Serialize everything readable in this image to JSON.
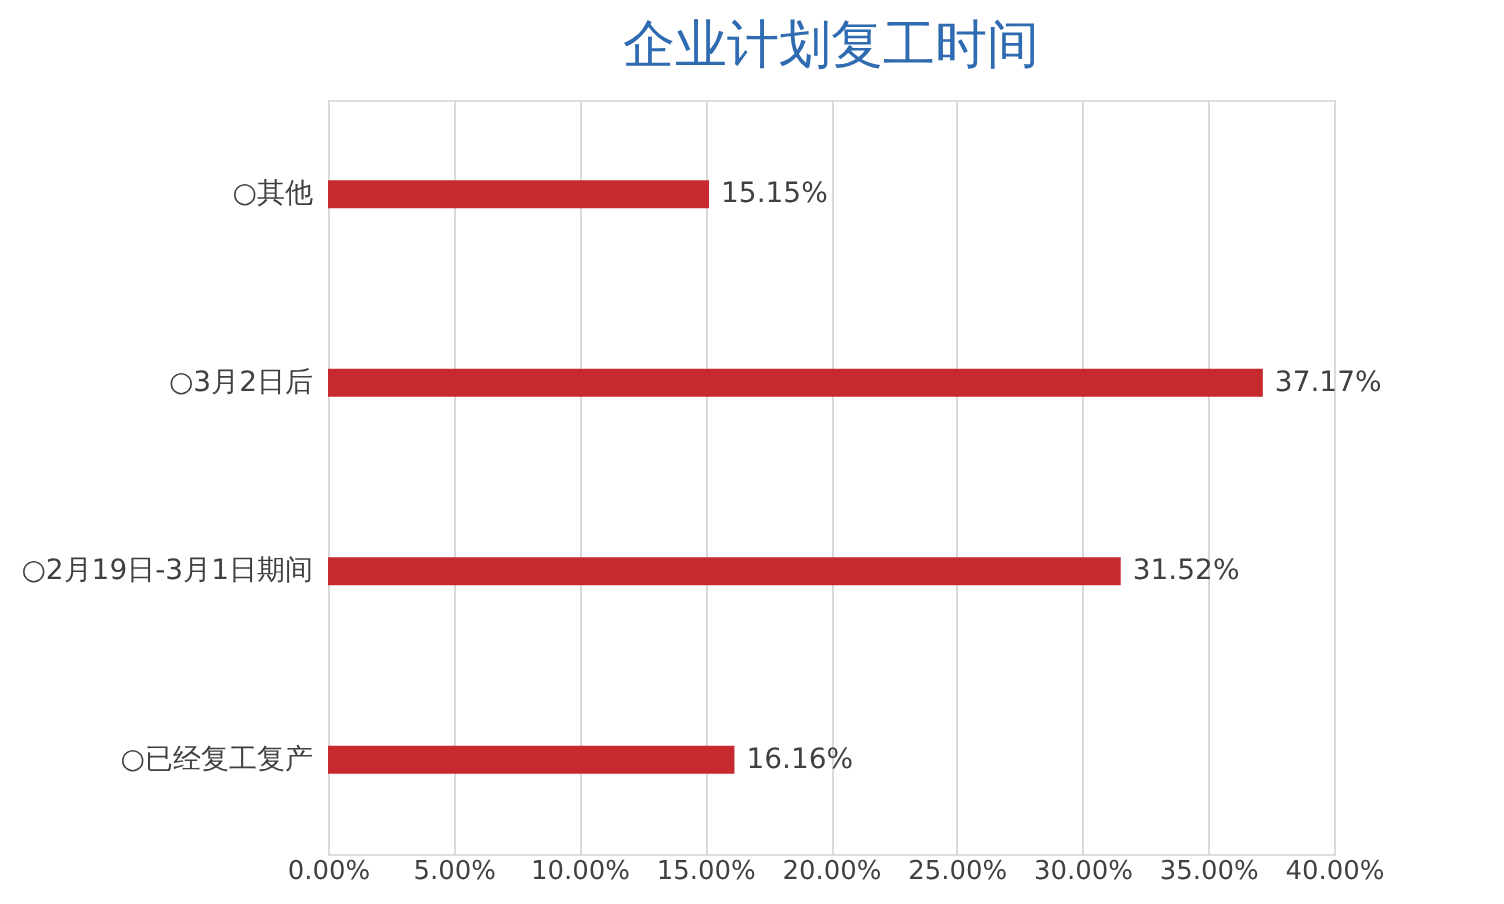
{
  "chart_data": {
    "type": "bar",
    "orientation": "horizontal",
    "title": "企业计划复工时间",
    "categories": [
      "○其他",
      "○3月2日后",
      "○2月19日-3月1日期间",
      "○已经复工复产"
    ],
    "values": [
      15.15,
      37.17,
      31.52,
      16.16
    ],
    "value_labels": [
      "15.15%",
      "37.17%",
      "31.52%",
      "16.16%"
    ],
    "color": "#c62a2f",
    "xlim": [
      0,
      40
    ],
    "xticks": [
      {
        "value": 0,
        "label": "0.00%"
      },
      {
        "value": 5,
        "label": "5.00%"
      },
      {
        "value": 10,
        "label": "10.00%"
      },
      {
        "value": 15,
        "label": "15.00%"
      },
      {
        "value": 20,
        "label": "20.00%"
      },
      {
        "value": 25,
        "label": "25.00%"
      },
      {
        "value": 30,
        "label": "30.00%"
      },
      {
        "value": 35,
        "label": "35.00%"
      },
      {
        "value": 40,
        "label": "40.00%"
      }
    ],
    "grid": "x"
  }
}
